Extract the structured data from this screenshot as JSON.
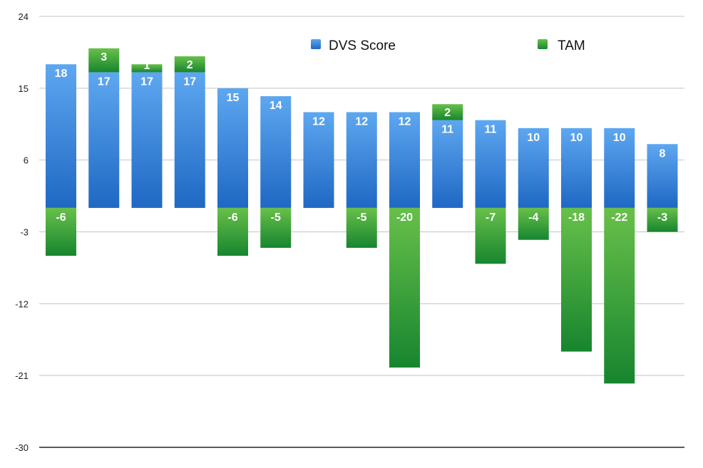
{
  "chart_data": {
    "type": "bar",
    "stacked": true,
    "title": "",
    "xlabel": "",
    "ylabel": "",
    "ylim": [
      -30,
      24
    ],
    "y_ticks": [
      24,
      15,
      6,
      -3,
      -12,
      -21,
      -30
    ],
    "grid": true,
    "legend_position": "top-right",
    "categories": [
      "",
      "",
      "",
      "",
      "",
      "",
      "",
      "",
      "",
      "",
      "",
      "",
      "",
      "",
      ""
    ],
    "series": [
      {
        "name": "DVS Score",
        "color": "#2f7fd8",
        "values": [
          18,
          17,
          17,
          17,
          15,
          14,
          12,
          12,
          12,
          11,
          11,
          10,
          10,
          10,
          8
        ]
      },
      {
        "name": "TAM",
        "color": "#3aa43a",
        "positive": [
          null,
          3,
          1,
          2,
          null,
          null,
          null,
          null,
          null,
          2,
          null,
          null,
          null,
          null,
          null
        ],
        "negative": [
          -6,
          null,
          null,
          null,
          -6,
          -5,
          null,
          -5,
          -20,
          null,
          -7,
          -4,
          -18,
          -22,
          -3
        ]
      }
    ]
  }
}
